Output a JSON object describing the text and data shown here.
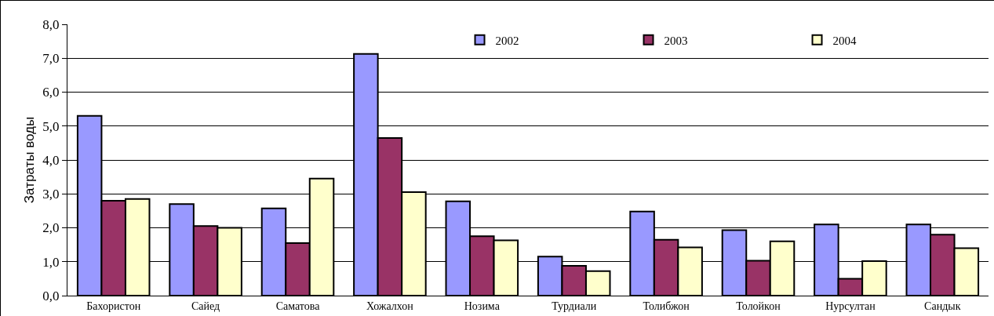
{
  "chart_data": {
    "type": "bar",
    "ylabel": "Затраты воды",
    "categories": [
      "Бахористон",
      "Сайед",
      "Саматова",
      "Хожалхон",
      "Нозима",
      "Турдиали",
      "Толибжон",
      "Толойкон",
      "Нурсултан",
      "Сандык"
    ],
    "series": [
      {
        "name": "2002",
        "color": "#9999ff",
        "values": [
          5.3,
          2.7,
          2.57,
          7.13,
          2.78,
          1.15,
          2.48,
          1.93,
          2.1,
          2.1
        ]
      },
      {
        "name": "2003",
        "color": "#993366",
        "values": [
          2.8,
          2.05,
          1.55,
          4.65,
          1.75,
          0.88,
          1.65,
          1.03,
          0.5,
          1.8
        ]
      },
      {
        "name": "2004",
        "color": "#ffffcc",
        "values": [
          2.85,
          2.0,
          3.45,
          3.05,
          1.63,
          0.72,
          1.42,
          1.6,
          1.02,
          1.4
        ]
      }
    ],
    "ylim": [
      0,
      8
    ],
    "yticks": [
      {
        "value": 0,
        "label": "0,0"
      },
      {
        "value": 1,
        "label": "1,0"
      },
      {
        "value": 2,
        "label": "2,0"
      },
      {
        "value": 3,
        "label": "3,0"
      },
      {
        "value": 4,
        "label": "4,0"
      },
      {
        "value": 5,
        "label": "5,0"
      },
      {
        "value": 6,
        "label": "6,0"
      },
      {
        "value": 7,
        "label": "7,0"
      },
      {
        "value": 8,
        "label": "8,0"
      }
    ],
    "grid": "y",
    "legend": "top right"
  }
}
